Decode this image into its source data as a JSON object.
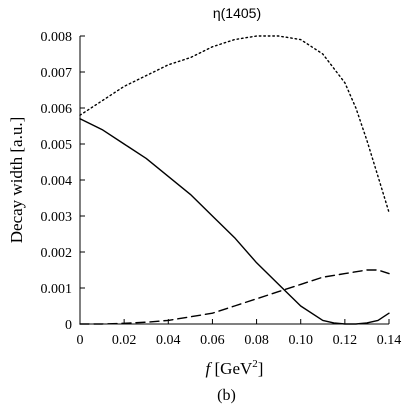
{
  "chart_data": {
    "type": "line",
    "title": "η(1405)",
    "panel_label": "(b)",
    "xlabel": {
      "italic": "f",
      "text": " [GeV",
      "sup": "2",
      "close": "]"
    },
    "ylabel": "Decay width [a.u.]",
    "xlim": [
      0,
      0.14
    ],
    "ylim": [
      0,
      0.008
    ],
    "x_ticks": [
      0,
      0.02,
      0.04,
      0.06,
      0.08,
      0.1,
      0.12,
      0.14
    ],
    "x_tick_labels": [
      "0",
      "0.02",
      "0.04",
      "0.06",
      "0.08",
      "0.10",
      "0.12",
      "0.14"
    ],
    "y_ticks": [
      0,
      0.001,
      0.002,
      0.003,
      0.004,
      0.005,
      0.006,
      0.007,
      0.008
    ],
    "y_tick_labels": [
      "0",
      "0.001",
      "0.002",
      "0.003",
      "0.004",
      "0.005",
      "0.006",
      "0.007",
      "0.008"
    ],
    "grid": false,
    "legend": "none",
    "series": [
      {
        "style": "solid",
        "x": [
          0,
          0.01,
          0.02,
          0.03,
          0.04,
          0.05,
          0.06,
          0.07,
          0.08,
          0.09,
          0.1,
          0.11,
          0.115,
          0.12,
          0.125,
          0.13,
          0.135,
          0.14
        ],
        "y": [
          0.0057,
          0.0054,
          0.005,
          0.0046,
          0.0041,
          0.0036,
          0.003,
          0.0024,
          0.0017,
          0.0011,
          0.0005,
          0.0001,
          3e-05,
          0.0,
          0.0,
          3e-05,
          0.0001,
          0.0003
        ]
      },
      {
        "style": "dashed",
        "x": [
          0,
          0.01,
          0.02,
          0.03,
          0.04,
          0.05,
          0.06,
          0.07,
          0.08,
          0.09,
          0.1,
          0.11,
          0.12,
          0.13,
          0.135,
          0.14
        ],
        "y": [
          0.0,
          0.0,
          2e-05,
          5e-05,
          0.0001,
          0.0002,
          0.0003,
          0.0005,
          0.0007,
          0.0009,
          0.0011,
          0.0013,
          0.0014,
          0.0015,
          0.0015,
          0.0014
        ]
      },
      {
        "style": "dotted",
        "x": [
          0,
          0.01,
          0.02,
          0.03,
          0.04,
          0.05,
          0.06,
          0.07,
          0.08,
          0.09,
          0.1,
          0.11,
          0.12,
          0.125,
          0.13,
          0.135,
          0.14
        ],
        "y": [
          0.0058,
          0.0062,
          0.0066,
          0.0069,
          0.0072,
          0.0074,
          0.0077,
          0.0079,
          0.008,
          0.008,
          0.0079,
          0.0075,
          0.0067,
          0.006,
          0.0051,
          0.0041,
          0.0031
        ]
      }
    ]
  }
}
